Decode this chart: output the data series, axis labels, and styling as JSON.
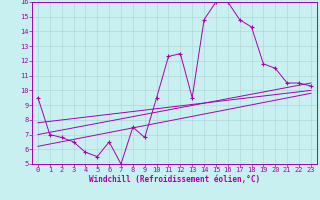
{
  "title": "",
  "xlabel": "Windchill (Refroidissement éolien,°C)",
  "ylabel": "",
  "bg_color": "#c8f0f0",
  "grid_color": "#b0d8d8",
  "line_color": "#aa00aa",
  "xlim": [
    -0.5,
    23.5
  ],
  "ylim": [
    5,
    16
  ],
  "xtick_labels": [
    "0",
    "1",
    "2",
    "3",
    "4",
    "5",
    "6",
    "7",
    "8",
    "9",
    "10",
    "11",
    "12",
    "13",
    "14",
    "15",
    "16",
    "17",
    "18",
    "19",
    "20",
    "21",
    "22",
    "23"
  ],
  "xticks": [
    0,
    1,
    2,
    3,
    4,
    5,
    6,
    7,
    8,
    9,
    10,
    11,
    12,
    13,
    14,
    15,
    16,
    17,
    18,
    19,
    20,
    21,
    22,
    23
  ],
  "yticks": [
    5,
    6,
    7,
    8,
    9,
    10,
    11,
    12,
    13,
    14,
    15,
    16
  ],
  "main_data_x": [
    0,
    1,
    2,
    3,
    4,
    5,
    6,
    7,
    8,
    9,
    10,
    11,
    12,
    13,
    14,
    15,
    16,
    17,
    18,
    19,
    20,
    21,
    22,
    23
  ],
  "main_data_y": [
    9.5,
    7.0,
    6.8,
    6.5,
    5.8,
    5.5,
    6.5,
    5.0,
    7.5,
    6.8,
    9.5,
    12.3,
    12.5,
    9.5,
    14.8,
    16.0,
    16.0,
    14.8,
    14.3,
    11.8,
    11.5,
    10.5,
    10.5,
    10.3
  ],
  "trend1_x": [
    0,
    23
  ],
  "trend1_y": [
    7.0,
    10.5
  ],
  "trend2_x": [
    0,
    23
  ],
  "trend2_y": [
    6.2,
    9.8
  ],
  "trend3_x": [
    0,
    23
  ],
  "trend3_y": [
    7.8,
    10.0
  ]
}
